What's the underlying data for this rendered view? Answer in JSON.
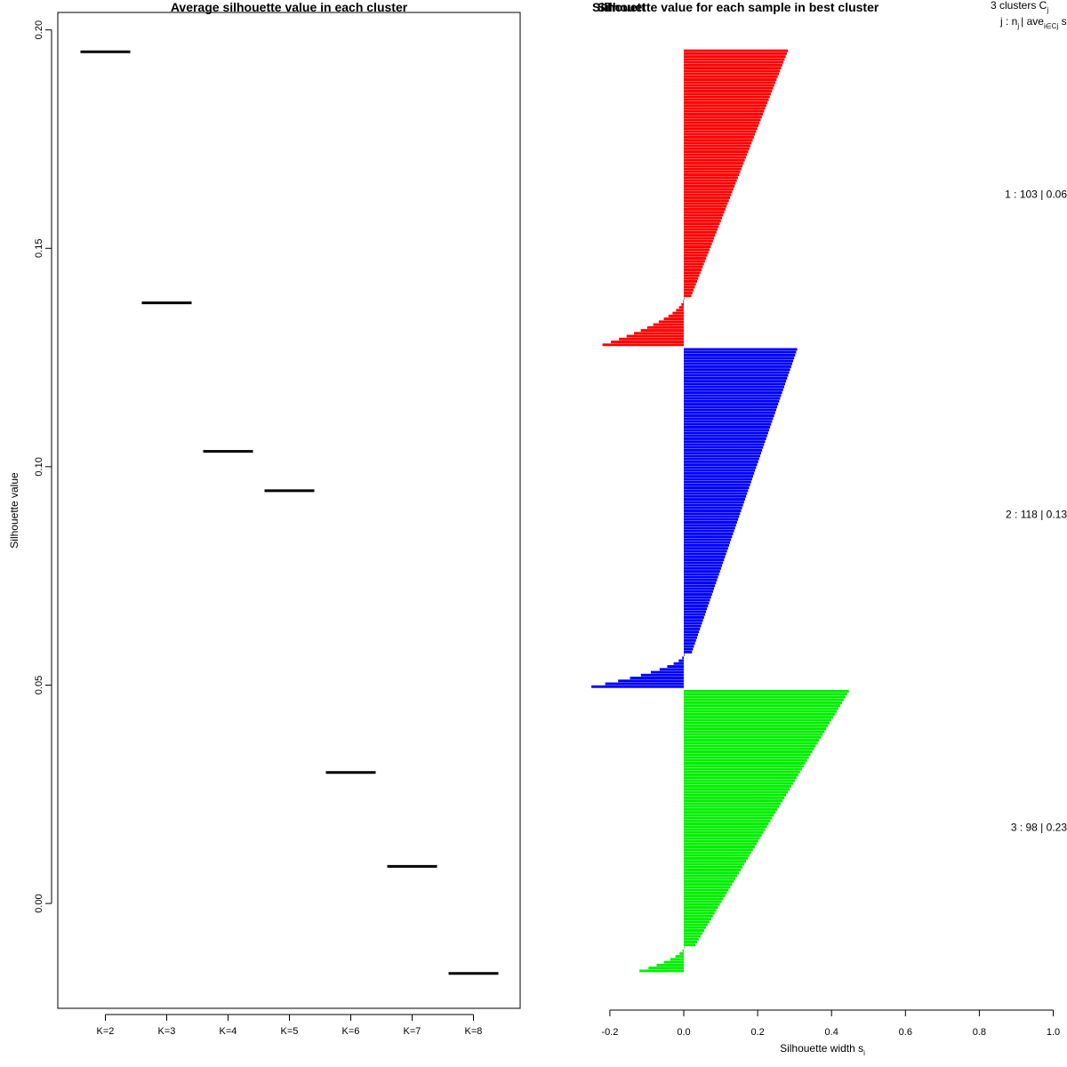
{
  "chart_data": [
    {
      "type": "line",
      "title": "Average silhouette value in each cluster",
      "xlabel": "",
      "ylabel": "Silhouette value",
      "categories": [
        "K=2",
        "K=3",
        "K=4",
        "K=5",
        "K=6",
        "K=7",
        "K=8"
      ],
      "values": [
        0.195,
        0.1375,
        0.1035,
        0.0945,
        0.03,
        0.0085,
        -0.016
      ],
      "y_ticks": [
        0.0,
        0.05,
        0.1,
        0.15,
        0.2
      ],
      "y_tick_labels": [
        "0.00",
        "0.05",
        "0.10",
        "0.15",
        "0.20"
      ],
      "ylim": [
        -0.024,
        0.204
      ],
      "marker": "horizontal segment"
    },
    {
      "type": "bar",
      "orientation": "horizontal",
      "title": "Silhouette value for each sample in best cluster",
      "title_overlap_text": "Silhouett",
      "xlabel": "Silhouette width s",
      "xlabel_subscript": "i",
      "x_ticks": [
        -0.2,
        0.0,
        0.2,
        0.4,
        0.6,
        0.8,
        1.0
      ],
      "x_tick_labels": [
        "-0.2",
        "0.0",
        "0.2",
        "0.4",
        "0.6",
        "0.8",
        "1.0"
      ],
      "xlim": [
        -0.25,
        1.0
      ],
      "header": {
        "line1": "3  clusters  C",
        "line1_sub": "j",
        "line2_a": "j :  n",
        "line2_sub1": "j",
        "line2_b": "| ave",
        "line2_sub2": "i∈Cj",
        "line2_c": " s"
      },
      "series": [
        {
          "name": "1",
          "n": 103,
          "label": "1 :  103  |  0.06",
          "color": "#ff0000",
          "max": 0.28,
          "min": -0.22,
          "positive_count": 86
        },
        {
          "name": "2",
          "n": 118,
          "label": "2 :  118  |  0.13",
          "color": "#0000ff",
          "max": 0.305,
          "min": -0.25,
          "positive_count": 106
        },
        {
          "name": "3",
          "n": 98,
          "label": "3 :  98  |  0.23",
          "color": "#00ee00",
          "max": 0.445,
          "min": -0.12,
          "positive_count": 89
        }
      ]
    }
  ]
}
